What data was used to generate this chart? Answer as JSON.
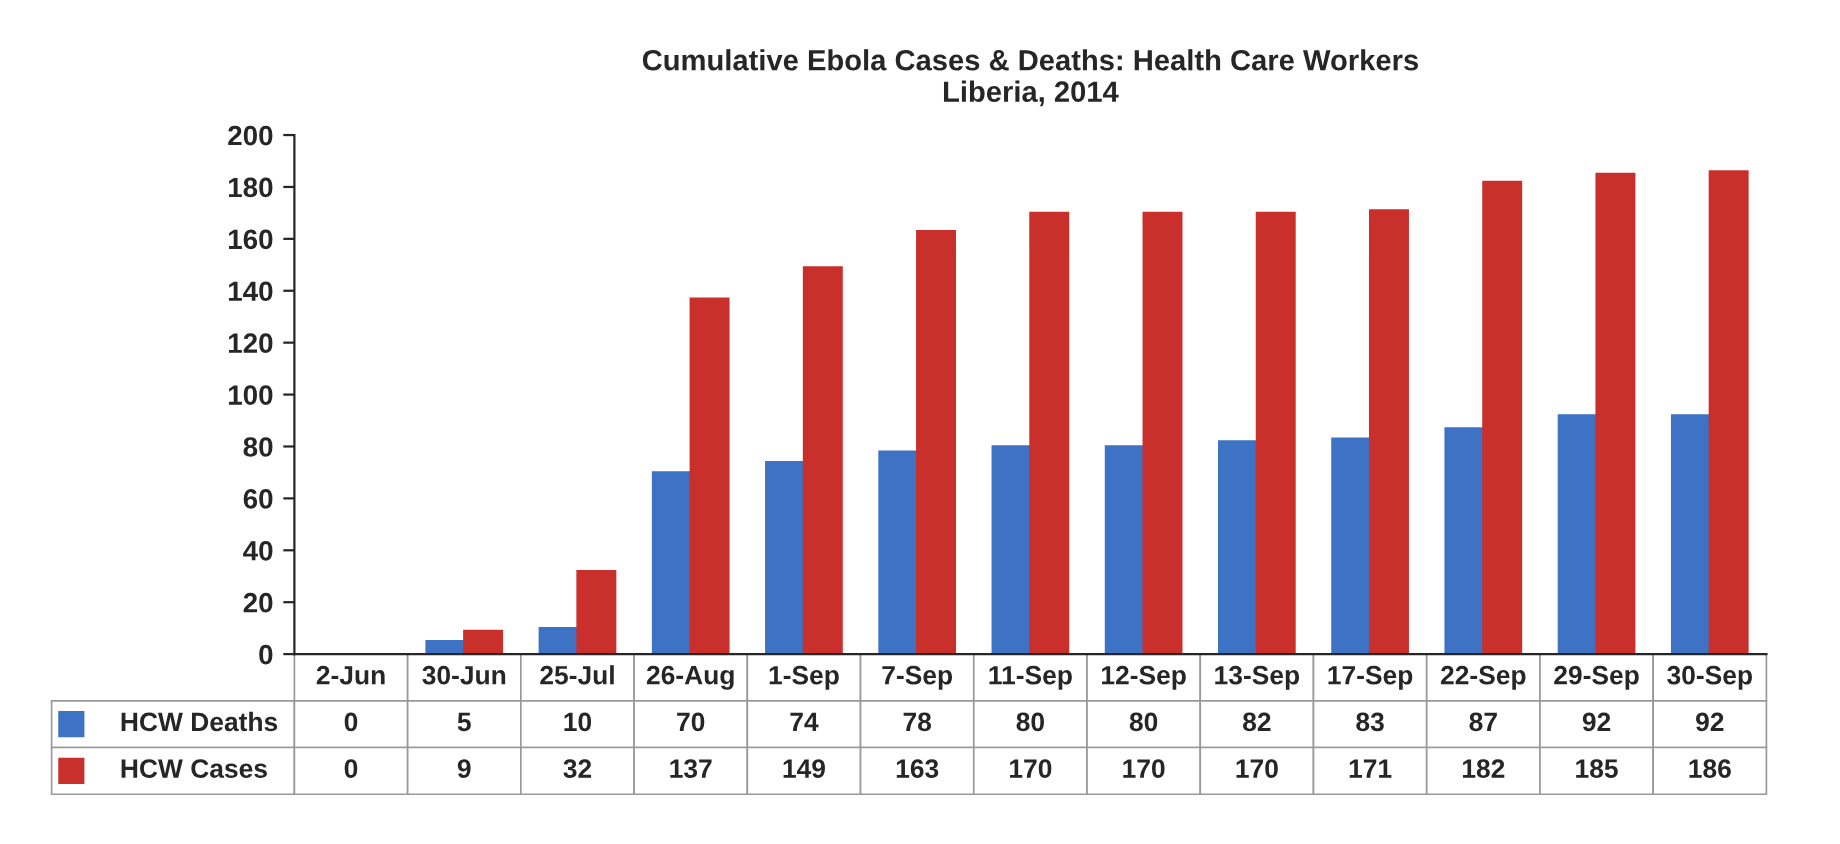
{
  "chart_data": {
    "type": "bar",
    "title": "Cumulative Ebola Cases & Deaths: Health Care Workers\nLiberia, 2014",
    "categories": [
      "2-Jun",
      "30-Jun",
      "25-Jul",
      "26-Aug",
      "1-Sep",
      "7-Sep",
      "11-Sep",
      "12-Sep",
      "13-Sep",
      "17-Sep",
      "22-Sep",
      "29-Sep",
      "30-Sep"
    ],
    "series": [
      {
        "name": "HCW Deaths",
        "color": "#3d72c4",
        "values": [
          0,
          5,
          10,
          70,
          74,
          78,
          80,
          80,
          82,
          83,
          87,
          92,
          92
        ]
      },
      {
        "name": "HCW Cases",
        "color": "#c9302c",
        "values": [
          0,
          9,
          32,
          137,
          149,
          163,
          170,
          170,
          170,
          171,
          182,
          185,
          186
        ]
      }
    ],
    "ylim": [
      0,
      200
    ],
    "yticks": [
      0,
      20,
      40,
      60,
      80,
      100,
      120,
      140,
      160,
      180,
      200
    ],
    "data_labels": true,
    "legend": "bottom",
    "grid": false
  }
}
